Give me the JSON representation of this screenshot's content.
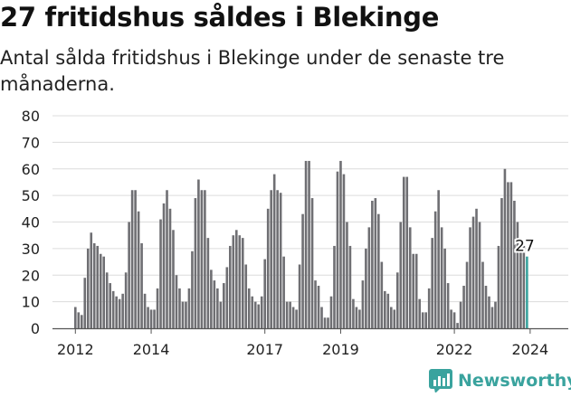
{
  "header": {
    "title": "27 fritidshus såldes i Blekinge",
    "subtitle": "Antal sålda fritidshus i Blekinge under de senaste tre månaderna."
  },
  "brand": {
    "name": "Newsworthy",
    "icon": "newsworthy-chart-logo-icon"
  },
  "colors": {
    "bar": "#6f6f73",
    "highlight": "#3aa39e",
    "grid": "#dcdcdc",
    "text": "#222222"
  },
  "chart_data": {
    "type": "bar",
    "title": "27 fritidshus såldes i Blekinge",
    "subtitle": "Antal sålda fritidshus i Blekinge under de senaste tre månaderna.",
    "xlabel": "",
    "ylabel": "",
    "ylim": [
      0,
      80
    ],
    "yticks": [
      0,
      10,
      20,
      30,
      40,
      50,
      60,
      70,
      80
    ],
    "grid": true,
    "x_tick_labels": [
      "2012",
      "2014",
      "2017",
      "2019",
      "2022",
      "2024"
    ],
    "x_tick_years": [
      2012,
      2014,
      2017,
      2019,
      2022,
      2024
    ],
    "start": "2012-01",
    "frequency": "monthly",
    "highlight_label": "27",
    "values": [
      8,
      6,
      5,
      19,
      30,
      36,
      32,
      31,
      28,
      27,
      21,
      17,
      14,
      12,
      11,
      13,
      21,
      40,
      52,
      52,
      44,
      32,
      13,
      8,
      7,
      7,
      15,
      41,
      47,
      52,
      45,
      37,
      20,
      15,
      10,
      10,
      15,
      29,
      49,
      56,
      52,
      52,
      34,
      22,
      18,
      15,
      10,
      17,
      23,
      31,
      35,
      37,
      35,
      34,
      24,
      15,
      12,
      10,
      9,
      12,
      26,
      45,
      52,
      58,
      52,
      51,
      27,
      10,
      10,
      8,
      7,
      24,
      43,
      63,
      63,
      49,
      18,
      16,
      8,
      4,
      4,
      12,
      31,
      59,
      63,
      58,
      40,
      31,
      11,
      8,
      7,
      18,
      30,
      38,
      48,
      49,
      43,
      25,
      14,
      13,
      8,
      7,
      21,
      40,
      57,
      57,
      38,
      28,
      28,
      11,
      6,
      6,
      15,
      34,
      44,
      52,
      38,
      30,
      17,
      7,
      6,
      2,
      10,
      16,
      25,
      38,
      42,
      45,
      40,
      25,
      16,
      12,
      8,
      10,
      31,
      49,
      60,
      55,
      55,
      48,
      40,
      31,
      31,
      27
    ]
  }
}
